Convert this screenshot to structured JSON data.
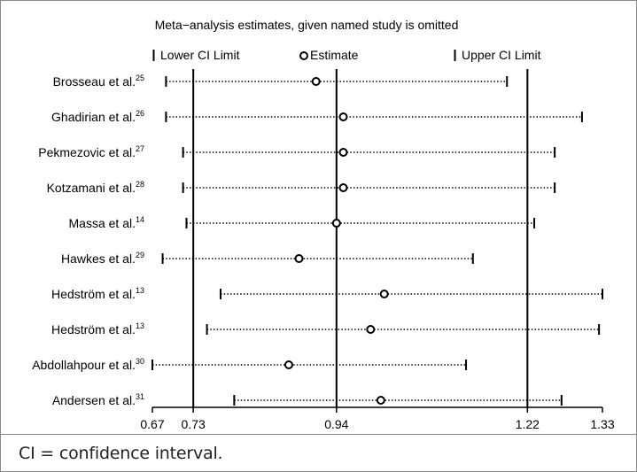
{
  "chart_data": {
    "type": "forest",
    "title": "Meta−analysis estimates, given named study is omitted",
    "legend": {
      "lower": "Lower CI Limit",
      "estimate": "Estimate",
      "upper": "Upper CI Limit",
      "placement": "top"
    },
    "x_ticks": [
      0.67,
      0.73,
      0.94,
      1.22,
      1.33
    ],
    "x_tick_labels": [
      "0.67",
      "0.73",
      "0.94",
      "1.22",
      "1.33"
    ],
    "reference_lines": [
      0.73,
      0.94,
      1.22
    ],
    "xlim": [
      0.67,
      1.33
    ],
    "studies": [
      {
        "name": "Brosseau et al.",
        "ref": "25",
        "lower": 0.69,
        "estimate": 0.91,
        "upper": 1.19
      },
      {
        "name": "Ghadirian et al.",
        "ref": "26",
        "lower": 0.69,
        "estimate": 0.95,
        "upper": 1.3
      },
      {
        "name": "Pekmezovic et al.",
        "ref": "27",
        "lower": 0.715,
        "estimate": 0.95,
        "upper": 1.26
      },
      {
        "name": "Kotzamani et al.",
        "ref": "28",
        "lower": 0.715,
        "estimate": 0.95,
        "upper": 1.26
      },
      {
        "name": "Massa et al.",
        "ref": "14",
        "lower": 0.72,
        "estimate": 0.94,
        "upper": 1.23
      },
      {
        "name": "Hawkes et al.",
        "ref": "29",
        "lower": 0.685,
        "estimate": 0.885,
        "upper": 1.14
      },
      {
        "name": "Hedström et al.",
        "ref": "13",
        "lower": 0.77,
        "estimate": 1.01,
        "upper": 1.33
      },
      {
        "name": "Hedström et al.",
        "ref": "13",
        "lower": 0.75,
        "estimate": 0.99,
        "upper": 1.325
      },
      {
        "name": "Abdollahpour et al.",
        "ref": "30",
        "lower": 0.67,
        "estimate": 0.87,
        "upper": 1.13
      },
      {
        "name": "Andersen et al.",
        "ref": "31",
        "lower": 0.79,
        "estimate": 1.005,
        "upper": 1.27
      }
    ]
  },
  "caption": "CI = confidence interval."
}
